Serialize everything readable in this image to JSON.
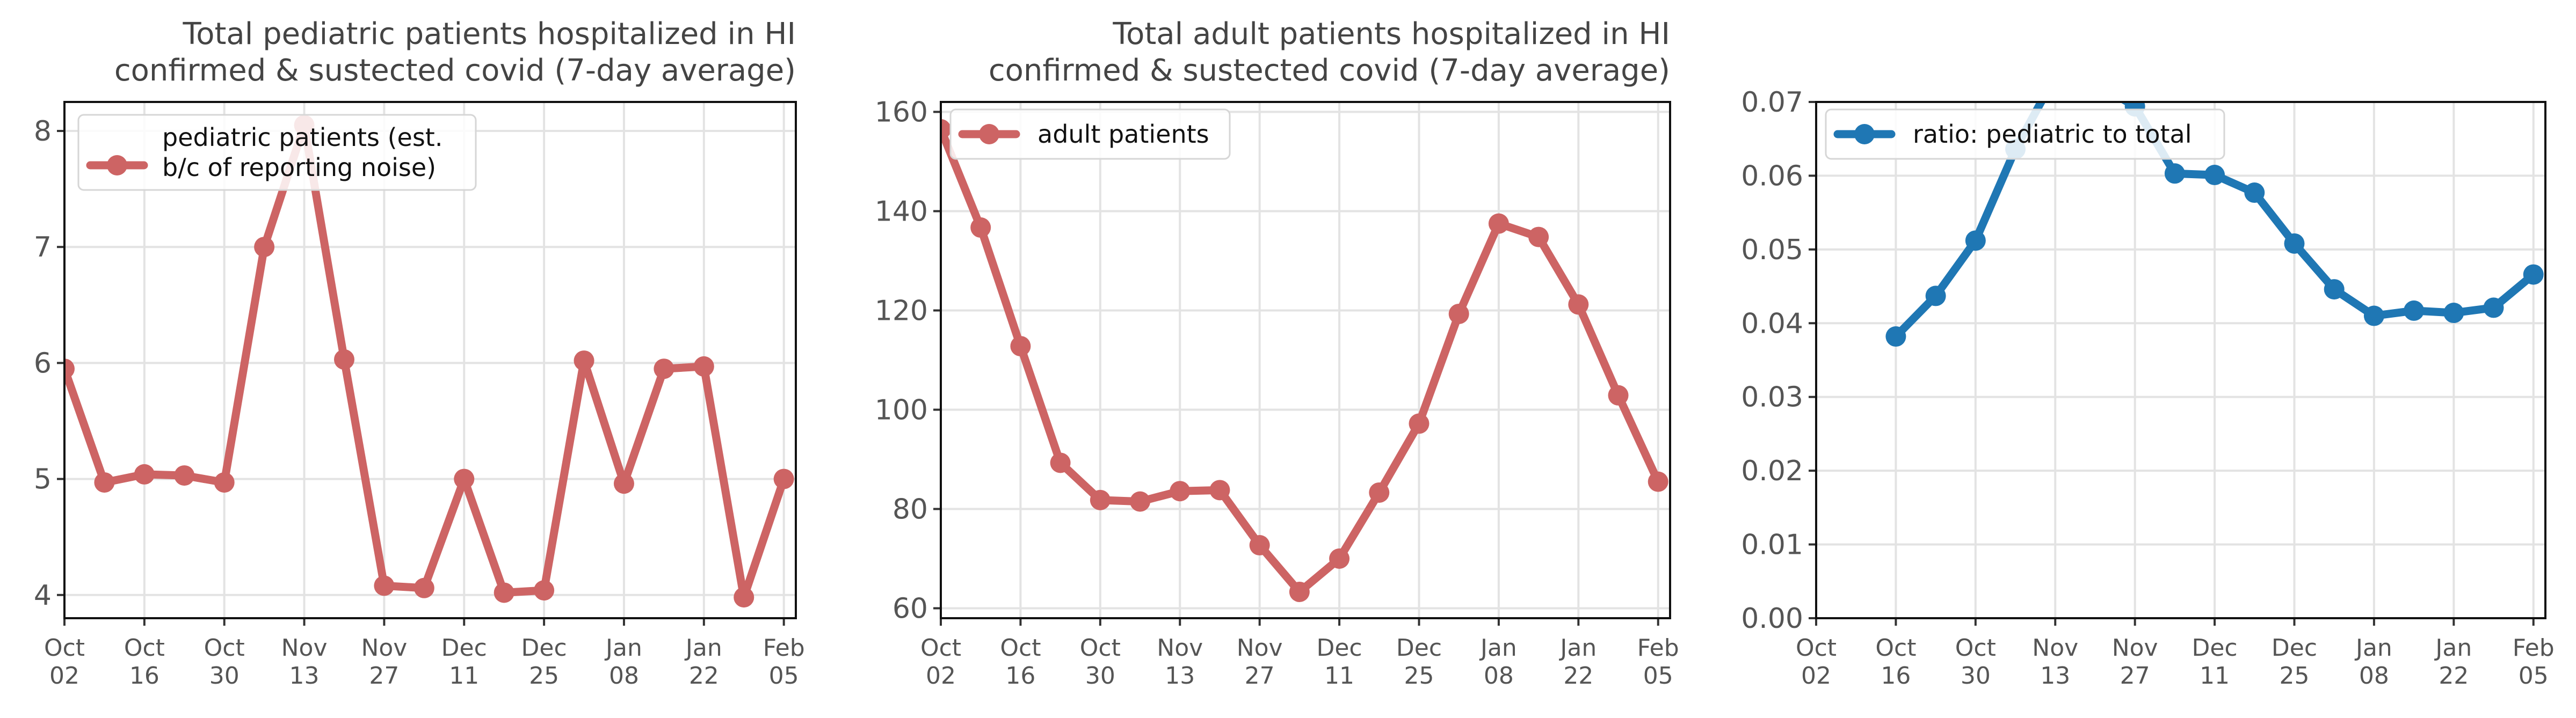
{
  "chart_data": [
    {
      "type": "line",
      "title": [
        "Total pediatric patients hospitalized in HI",
        "confirmed & sustected covid (7-day average)"
      ],
      "xlabel": "",
      "ylabel": "",
      "ylim": [
        3.8,
        8.25
      ],
      "yticks": [
        4,
        5,
        6,
        7,
        8
      ],
      "ytick_labels": [
        "4",
        "5",
        "6",
        "7",
        "8"
      ],
      "xlim": [
        0,
        18.3
      ],
      "xticks": [
        0,
        2,
        4,
        6,
        8,
        10,
        12,
        14,
        16,
        18
      ],
      "xtick_labels": [
        [
          "Oct",
          "02"
        ],
        [
          "Oct",
          "16"
        ],
        [
          "Oct",
          "30"
        ],
        [
          "Nov",
          "13"
        ],
        [
          "Nov",
          "27"
        ],
        [
          "Dec",
          "11"
        ],
        [
          "Dec",
          "25"
        ],
        [
          "Jan",
          "08"
        ],
        [
          "Jan",
          "22"
        ],
        [
          "Feb",
          "05"
        ]
      ],
      "grid": true,
      "legend_position": "upper-left",
      "series": [
        {
          "name": [
            "pediatric patients (est.",
            "b/c of reporting noise)"
          ],
          "color": "#cd6464",
          "x": [
            0,
            1,
            2,
            3,
            4,
            5,
            6,
            7,
            8,
            9,
            10,
            11,
            12,
            13,
            14,
            15,
            16,
            17,
            18
          ],
          "values": [
            5.95,
            4.97,
            5.04,
            5.03,
            4.97,
            7.0,
            8.05,
            6.03,
            4.08,
            4.06,
            5.0,
            4.02,
            4.04,
            6.02,
            4.96,
            5.95,
            5.97,
            3.98,
            5.0
          ]
        }
      ]
    },
    {
      "type": "line",
      "title": [
        "Total adult patients hospitalized in HI",
        "confirmed & sustected covid (7-day average)"
      ],
      "xlabel": "",
      "ylabel": "",
      "ylim": [
        58,
        162
      ],
      "yticks": [
        60,
        80,
        100,
        120,
        140,
        160
      ],
      "ytick_labels": [
        "60",
        "80",
        "100",
        "120",
        "140",
        "160"
      ],
      "xlim": [
        0,
        18.3
      ],
      "xticks": [
        0,
        2,
        4,
        6,
        8,
        10,
        12,
        14,
        16,
        18
      ],
      "xtick_labels": [
        [
          "Oct",
          "02"
        ],
        [
          "Oct",
          "16"
        ],
        [
          "Oct",
          "30"
        ],
        [
          "Nov",
          "13"
        ],
        [
          "Nov",
          "27"
        ],
        [
          "Dec",
          "11"
        ],
        [
          "Dec",
          "25"
        ],
        [
          "Jan",
          "08"
        ],
        [
          "Jan",
          "22"
        ],
        [
          "Feb",
          "05"
        ]
      ],
      "grid": true,
      "legend_position": "upper-left",
      "series": [
        {
          "name": [
            "adult patients"
          ],
          "color": "#cd6464",
          "x": [
            0,
            1,
            2,
            3,
            4,
            5,
            6,
            7,
            8,
            9,
            10,
            11,
            12,
            13,
            14,
            15,
            16,
            17,
            18
          ],
          "values": [
            156.5,
            136.7,
            112.8,
            89.3,
            81.8,
            81.5,
            83.6,
            83.8,
            72.7,
            63.3,
            70.0,
            83.3,
            97.2,
            119.3,
            137.5,
            134.8,
            121.2,
            102.9,
            85.5
          ]
        }
      ]
    },
    {
      "type": "line",
      "title": [],
      "xlabel": "",
      "ylabel": "",
      "ylim": [
        0,
        0.07
      ],
      "yticks": [
        0,
        0.01,
        0.02,
        0.03,
        0.04,
        0.05,
        0.06,
        0.07
      ],
      "ytick_labels": [
        "0.00",
        "0.01",
        "0.02",
        "0.03",
        "0.04",
        "0.05",
        "0.06",
        "0.07"
      ],
      "xlim": [
        0,
        18.3
      ],
      "xticks": [
        0,
        2,
        4,
        6,
        8,
        10,
        12,
        14,
        16,
        18
      ],
      "xtick_labels": [
        [
          "Oct",
          "02"
        ],
        [
          "Oct",
          "16"
        ],
        [
          "Oct",
          "30"
        ],
        [
          "Nov",
          "13"
        ],
        [
          "Nov",
          "27"
        ],
        [
          "Dec",
          "11"
        ],
        [
          "Dec",
          "25"
        ],
        [
          "Jan",
          "08"
        ],
        [
          "Jan",
          "22"
        ],
        [
          "Feb",
          "05"
        ]
      ],
      "grid": true,
      "legend_position": "upper-left",
      "series": [
        {
          "name": [
            "ratio: pediatric to total"
          ],
          "color": "#1f77b4",
          "x": [
            2,
            3,
            4,
            5,
            6,
            7,
            8,
            9,
            10,
            11,
            12,
            13,
            14,
            15,
            16,
            17,
            18
          ],
          "values": [
            0.0382,
            0.0437,
            0.0512,
            0.0636,
            0.0735,
            0.0726,
            0.0694,
            0.0603,
            0.0601,
            0.0577,
            0.0508,
            0.0446,
            0.041,
            0.0417,
            0.0414,
            0.0421,
            0.0466
          ]
        }
      ]
    }
  ]
}
